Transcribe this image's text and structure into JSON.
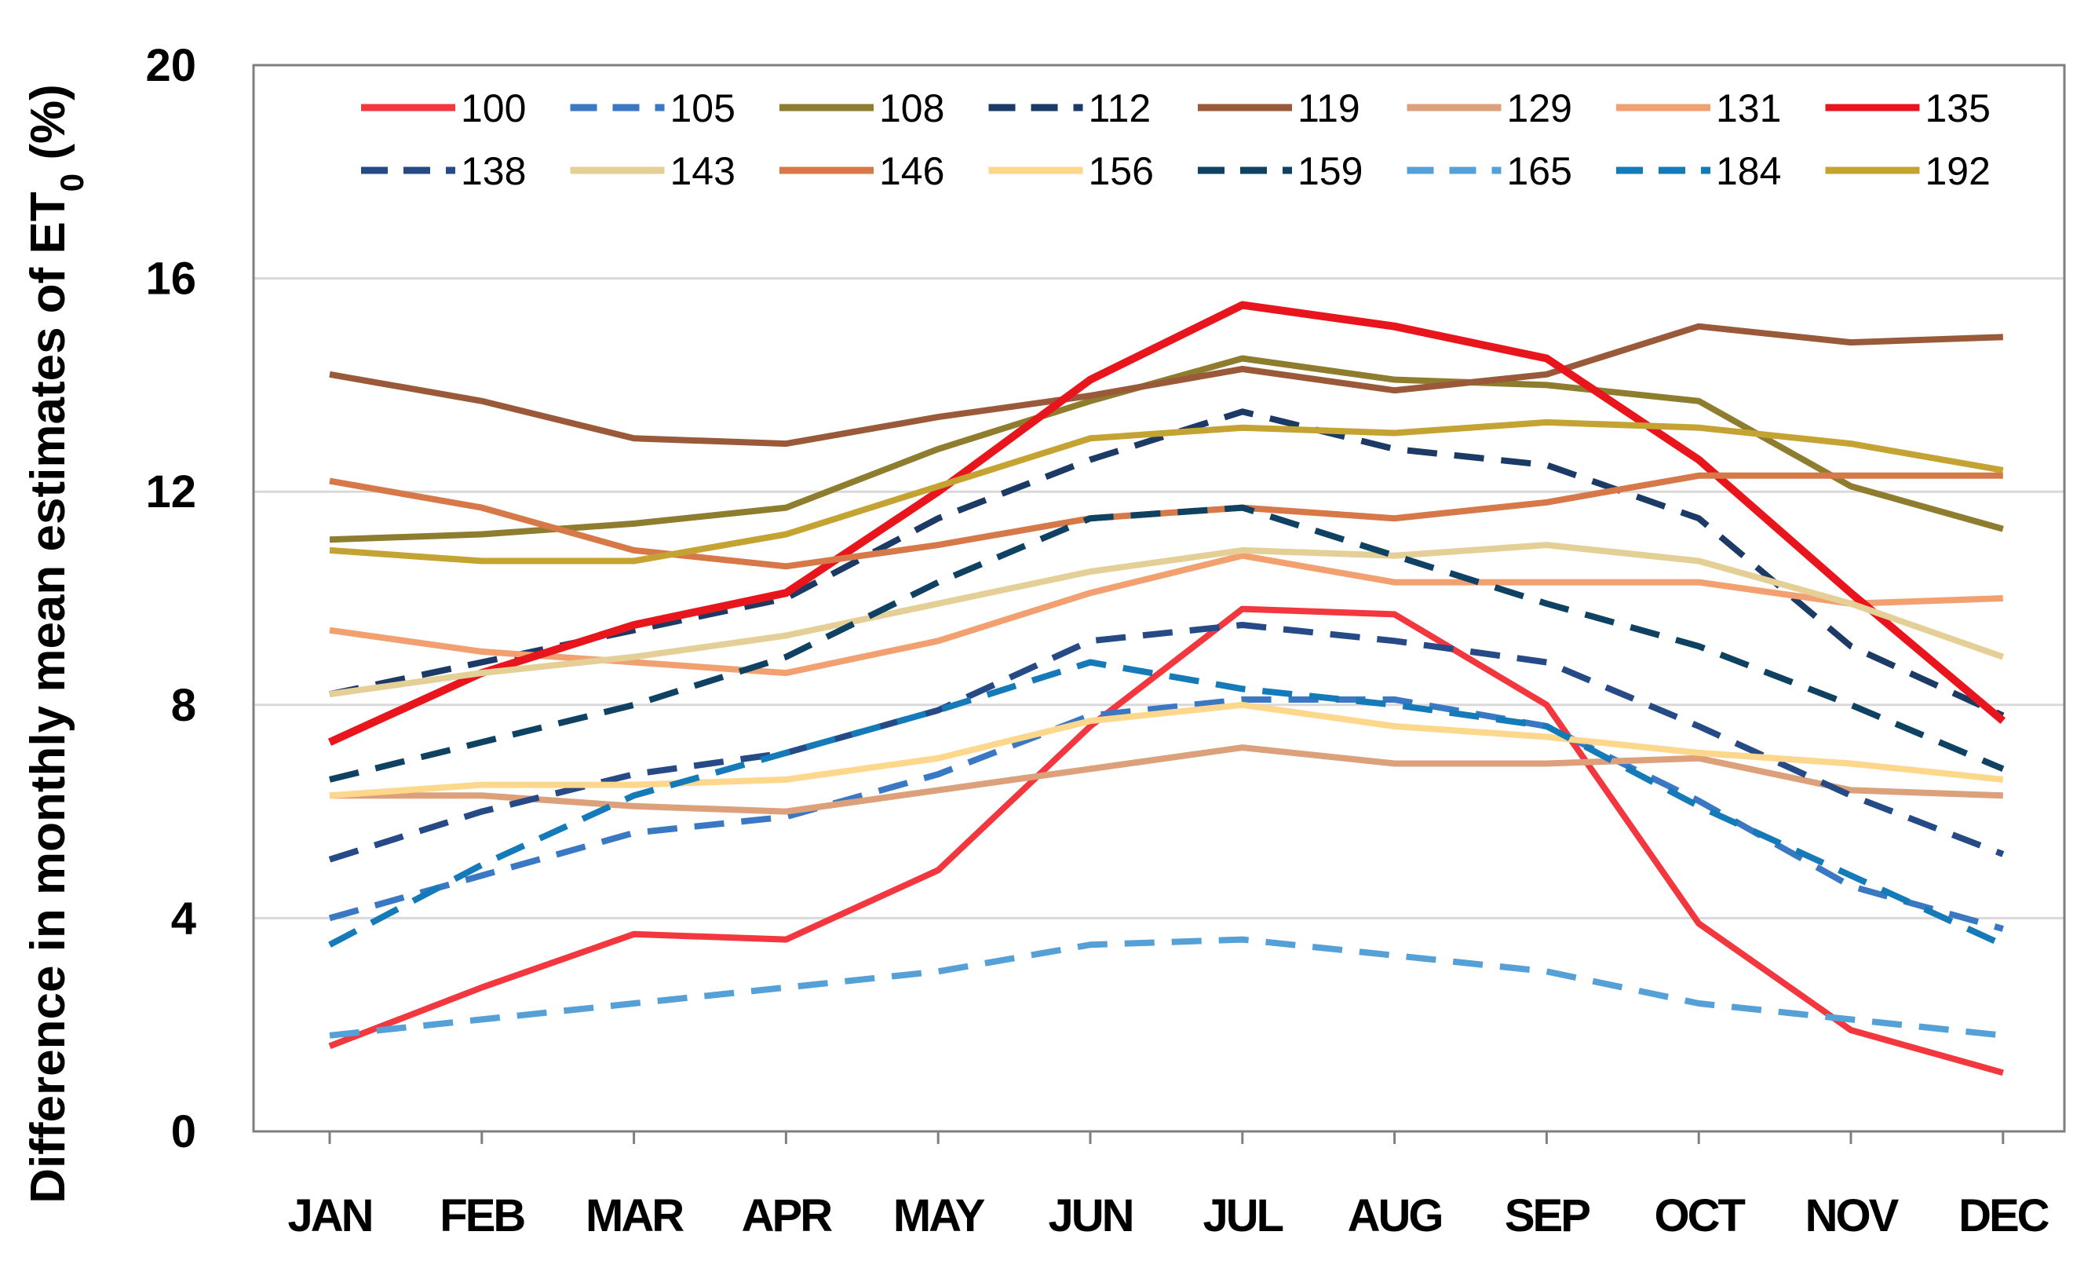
{
  "chart_data": {
    "type": "line",
    "title": "",
    "xlabel": "",
    "ylabel": "Difference in monthly mean estimates of ET",
    "ylabel_subscript": "0",
    "ylabel_suffix": " (%)",
    "ylim": [
      0,
      20
    ],
    "yticks": [
      0,
      4,
      8,
      12,
      16,
      20
    ],
    "grid": true,
    "legend_position": "top",
    "categories": [
      "JAN",
      "FEB",
      "MAR",
      "APR",
      "MAY",
      "JUN",
      "JUL",
      "AUG",
      "SEP",
      "OCT",
      "NOV",
      "DEC"
    ],
    "series": [
      {
        "name": "100",
        "color": "#f2373f",
        "dash": "solid",
        "values": [
          1.6,
          2.7,
          3.7,
          3.6,
          4.9,
          7.6,
          9.8,
          9.7,
          8.0,
          3.9,
          1.9,
          1.1
        ]
      },
      {
        "name": "105",
        "color": "#3a78c4",
        "dash": "dashed",
        "values": [
          4.0,
          4.8,
          5.6,
          5.9,
          6.7,
          7.8,
          8.1,
          8.1,
          7.6,
          6.2,
          4.6,
          3.8
        ]
      },
      {
        "name": "108",
        "color": "#8e7d2e",
        "dash": "solid",
        "values": [
          11.1,
          11.2,
          11.4,
          11.7,
          12.8,
          13.7,
          14.5,
          14.1,
          14.0,
          13.7,
          12.1,
          11.3
        ]
      },
      {
        "name": "112",
        "color": "#1c3a66",
        "dash": "dashed",
        "values": [
          8.2,
          8.8,
          9.4,
          10.0,
          11.5,
          12.6,
          13.5,
          12.8,
          12.5,
          11.5,
          9.1,
          7.8
        ]
      },
      {
        "name": "119",
        "color": "#9a5a3a",
        "dash": "solid",
        "values": [
          14.2,
          13.7,
          13.0,
          12.9,
          13.4,
          13.8,
          14.3,
          13.9,
          14.2,
          15.1,
          14.8,
          14.9
        ]
      },
      {
        "name": "129",
        "color": "#dca07a",
        "dash": "solid",
        "values": [
          6.3,
          6.3,
          6.1,
          6.0,
          6.4,
          6.8,
          7.2,
          6.9,
          6.9,
          7.0,
          6.4,
          6.3
        ]
      },
      {
        "name": "131",
        "color": "#f3a070",
        "dash": "solid",
        "values": [
          9.4,
          9.0,
          8.8,
          8.6,
          9.2,
          10.1,
          10.8,
          10.3,
          10.3,
          10.3,
          9.9,
          10.0
        ]
      },
      {
        "name": "135",
        "color": "#e8161c",
        "dash": "solid",
        "values": [
          7.3,
          8.6,
          9.5,
          10.1,
          12.0,
          14.1,
          15.5,
          15.1,
          14.5,
          12.6,
          10.1,
          7.7
        ]
      },
      {
        "name": "138",
        "color": "#254a86",
        "dash": "dashed",
        "values": [
          5.1,
          6.0,
          6.7,
          7.1,
          7.9,
          9.2,
          9.5,
          9.2,
          8.8,
          7.6,
          6.3,
          5.2
        ]
      },
      {
        "name": "143",
        "color": "#e4cf96",
        "dash": "solid",
        "values": [
          8.2,
          8.6,
          8.9,
          9.3,
          9.9,
          10.5,
          10.9,
          10.8,
          11.0,
          10.7,
          9.9,
          8.9
        ]
      },
      {
        "name": "146",
        "color": "#d67848",
        "dash": "solid",
        "values": [
          12.2,
          11.7,
          10.9,
          10.6,
          11.0,
          11.5,
          11.7,
          11.5,
          11.8,
          12.3,
          12.3,
          12.3
        ]
      },
      {
        "name": "156",
        "color": "#fcd78c",
        "dash": "solid",
        "values": [
          6.3,
          6.5,
          6.5,
          6.6,
          7.0,
          7.7,
          8.0,
          7.6,
          7.4,
          7.1,
          6.9,
          6.6
        ]
      },
      {
        "name": "159",
        "color": "#0f4262",
        "dash": "dashed",
        "values": [
          6.6,
          7.3,
          8.0,
          8.9,
          10.3,
          11.5,
          11.7,
          10.8,
          9.9,
          9.1,
          8.0,
          6.8
        ]
      },
      {
        "name": "165",
        "color": "#55a0d6",
        "dash": "dashed",
        "values": [
          1.8,
          2.1,
          2.4,
          2.7,
          3.0,
          3.5,
          3.6,
          3.3,
          3.0,
          2.4,
          2.1,
          1.8
        ]
      },
      {
        "name": "184",
        "color": "#147ab8",
        "dash": "dashed",
        "values": [
          3.5,
          5.0,
          6.3,
          7.1,
          7.9,
          8.8,
          8.3,
          8.0,
          7.6,
          6.1,
          4.8,
          3.5
        ]
      },
      {
        "name": "192",
        "color": "#c4a333",
        "dash": "solid",
        "values": [
          10.9,
          10.7,
          10.7,
          11.2,
          12.1,
          13.0,
          13.2,
          13.1,
          13.3,
          13.2,
          12.9,
          12.4
        ]
      }
    ]
  }
}
